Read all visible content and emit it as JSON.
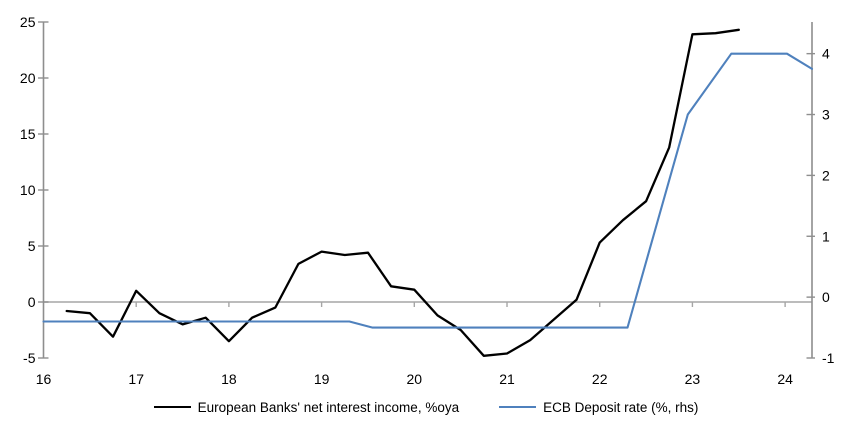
{
  "chart_data": {
    "type": "line",
    "title": "",
    "x_axis": {
      "tick_values": [
        16,
        17,
        18,
        19,
        20,
        21,
        22,
        23,
        24
      ],
      "tick_labels": [
        "16",
        "17",
        "18",
        "19",
        "20",
        "21",
        "22",
        "23",
        "24"
      ],
      "range": [
        16,
        24.29
      ],
      "zero_line_ticks": [
        17,
        18,
        19,
        20,
        21,
        22,
        23,
        24
      ]
    },
    "left_axis": {
      "tick_values": [
        -5,
        0,
        5,
        10,
        15,
        20,
        25
      ],
      "tick_labels": [
        "-5",
        "0",
        "5",
        "10",
        "15",
        "20",
        "25"
      ],
      "range": [
        -5,
        25
      ]
    },
    "right_axis": {
      "tick_values": [
        -1,
        0,
        1,
        2,
        3,
        4
      ],
      "tick_labels": [
        "-1",
        "0",
        "1",
        "2",
        "3",
        "4"
      ],
      "range": [
        -1,
        4.52
      ]
    },
    "grid": "zero-line-only",
    "legend_position": "bottom",
    "series": [
      {
        "id": "nii",
        "name": "European Banks' net interest income, %oya",
        "axis": "left",
        "color": "#000000",
        "x": [
          16.25,
          16.5,
          16.75,
          17.0,
          17.25,
          17.5,
          17.75,
          18.0,
          18.25,
          18.5,
          18.75,
          19.0,
          19.25,
          19.5,
          19.75,
          20.0,
          20.25,
          20.5,
          20.75,
          21.0,
          21.25,
          21.5,
          21.75,
          22.0,
          22.25,
          22.5,
          22.75,
          23.0,
          23.25,
          23.5
        ],
        "y": [
          -0.8,
          -1.0,
          -3.1,
          1.0,
          -1.0,
          -2.0,
          -1.4,
          -3.5,
          -1.4,
          -0.5,
          3.4,
          4.5,
          4.2,
          4.4,
          1.4,
          1.1,
          -1.2,
          -2.5,
          -4.8,
          -4.6,
          -3.4,
          -1.6,
          0.2,
          5.3,
          7.3,
          9.0,
          13.8,
          23.9,
          24.0,
          24.3
        ]
      },
      {
        "id": "ecb",
        "name": "ECB Deposit rate (%, rhs)",
        "axis": "right",
        "color": "#4f81bd",
        "x": [
          16.0,
          19.3,
          19.55,
          22.3,
          22.95,
          23.42,
          24.02,
          24.29
        ],
        "y": [
          -0.4,
          -0.4,
          -0.5,
          -0.5,
          3.0,
          4.0,
          4.0,
          3.75
        ]
      }
    ]
  },
  "legend": {
    "items": [
      {
        "label": "European Banks' net interest income, %oya",
        "series": "nii"
      },
      {
        "label": "ECB Deposit rate (%, rhs)",
        "series": "ecb"
      }
    ]
  },
  "colors": {
    "background": "#ffffff",
    "axis_line": "#8e8e8e",
    "zero_line": "#a6a6a6",
    "tick_text": "#000000",
    "series_nii": "#000000",
    "series_ecb": "#4f81bd"
  }
}
